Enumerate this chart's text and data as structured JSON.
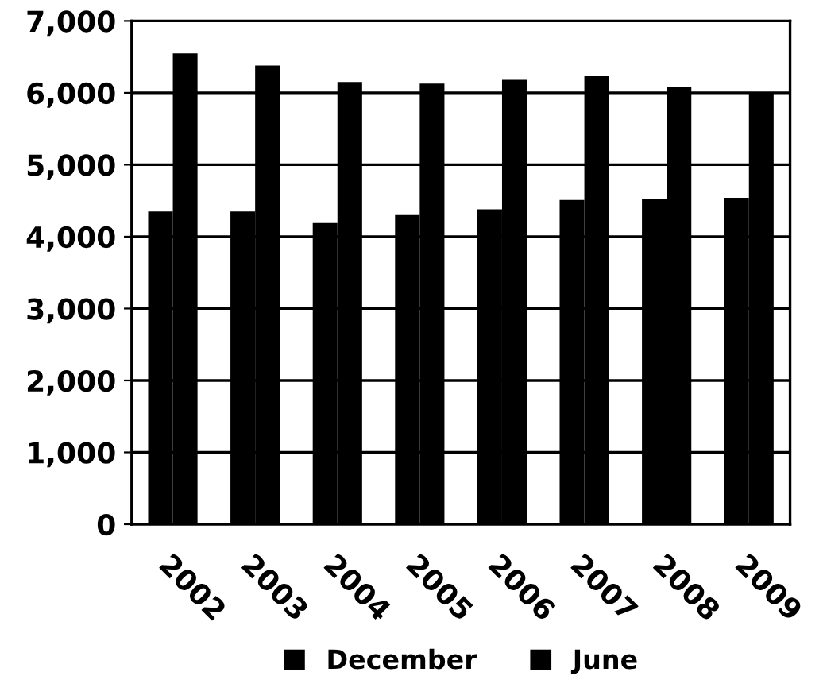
{
  "chart_data": {
    "type": "bar",
    "categories": [
      "2002",
      "2003",
      "2004",
      "2005",
      "2006",
      "2007",
      "2008",
      "2009"
    ],
    "series": [
      {
        "name": "December",
        "color": "#000000",
        "values": [
          4350,
          4350,
          4190,
          4300,
          4380,
          4510,
          4530,
          4540
        ]
      },
      {
        "name": "June",
        "color": "#000000",
        "values": [
          6550,
          6380,
          6150,
          6130,
          6180,
          6230,
          6080,
          6010
        ]
      }
    ],
    "ylim": [
      0,
      7000
    ],
    "yticks": [
      {
        "value": 0,
        "label": "0"
      },
      {
        "value": 1000,
        "label": "1,000"
      },
      {
        "value": 2000,
        "label": "2,000"
      },
      {
        "value": 3000,
        "label": "3,000"
      },
      {
        "value": 4000,
        "label": "4,000"
      },
      {
        "value": 5000,
        "label": "5,000"
      },
      {
        "value": 6000,
        "label": "6,000"
      },
      {
        "value": 7000,
        "label": "7,000"
      }
    ],
    "grid": "y",
    "legend": "bottom"
  }
}
